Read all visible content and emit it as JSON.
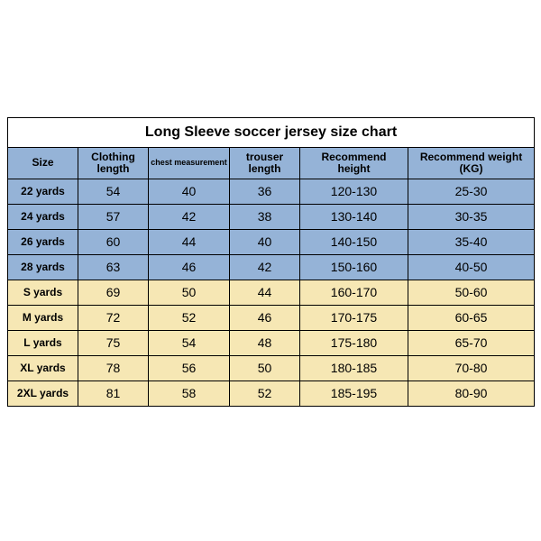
{
  "title": "Long Sleeve soccer jersey size chart",
  "columns": [
    {
      "key": "size",
      "label": "Size",
      "class": "col-size"
    },
    {
      "key": "cl",
      "label": "Clothing length",
      "class": "col-cl",
      "multiline": true
    },
    {
      "key": "chest",
      "label": "chest measurement",
      "class": "col-chest",
      "small": true
    },
    {
      "key": "tl",
      "label": "trouser length",
      "class": "col-tl"
    },
    {
      "key": "rh",
      "label": "Recommend height",
      "class": "col-rh",
      "multiline": true
    },
    {
      "key": "rw",
      "label": "Recommend weight (KG)",
      "class": "col-rw"
    }
  ],
  "rows": [
    {
      "group": "kids",
      "size": "22 yards",
      "cl": "54",
      "chest": "40",
      "tl": "36",
      "rh": "120-130",
      "rw": "25-30"
    },
    {
      "group": "kids",
      "size": "24 yards",
      "cl": "57",
      "chest": "42",
      "tl": "38",
      "rh": "130-140",
      "rw": "30-35"
    },
    {
      "group": "kids",
      "size": "26 yards",
      "cl": "60",
      "chest": "44",
      "tl": "40",
      "rh": "140-150",
      "rw": "35-40"
    },
    {
      "group": "kids",
      "size": "28 yards",
      "cl": "63",
      "chest": "46",
      "tl": "42",
      "rh": "150-160",
      "rw": "40-50"
    },
    {
      "group": "adult",
      "size": "S yards",
      "cl": "69",
      "chest": "50",
      "tl": "44",
      "rh": "160-170",
      "rw": "50-60"
    },
    {
      "group": "adult",
      "size": "M yards",
      "cl": "72",
      "chest": "52",
      "tl": "46",
      "rh": "170-175",
      "rw": "60-65"
    },
    {
      "group": "adult",
      "size": "L yards",
      "cl": "75",
      "chest": "54",
      "tl": "48",
      "rh": "175-180",
      "rw": "65-70"
    },
    {
      "group": "adult",
      "size": "XL yards",
      "cl": "78",
      "chest": "56",
      "tl": "50",
      "rh": "180-185",
      "rw": "70-80"
    },
    {
      "group": "adult",
      "size": "2XL yards",
      "cl": "81",
      "chest": "58",
      "tl": "52",
      "rh": "185-195",
      "rw": "80-90"
    }
  ],
  "palette": {
    "kids_bg": "#95b3d7",
    "adult_bg": "#f6e7b4",
    "border": "#000000"
  }
}
